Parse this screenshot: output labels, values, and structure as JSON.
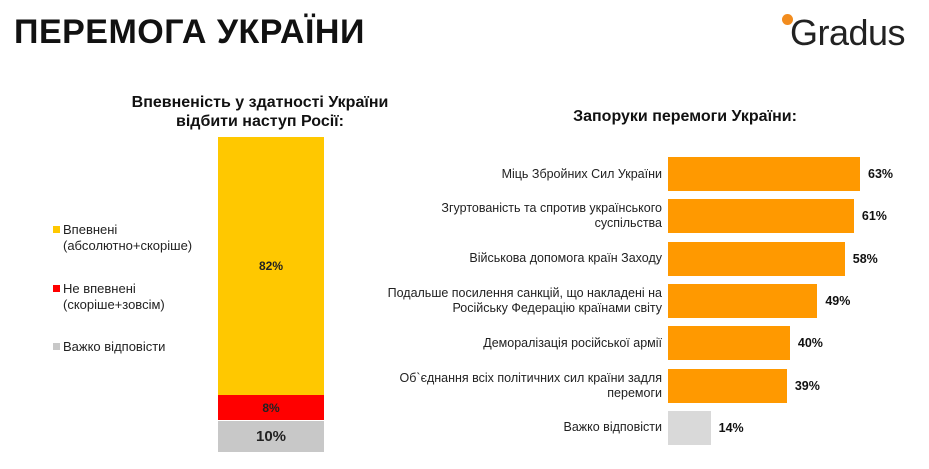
{
  "header": {
    "title": "ПЕРЕМОГА УКРАЇНИ",
    "brand": "Gradus"
  },
  "colors": {
    "confident": "#ffc800",
    "not_confident": "#ff0000",
    "hard_to_say": "#c8c8c8",
    "bars": "#ff9900",
    "bar_hard": "#d9d9d9",
    "brand_dot": "#f28c1e"
  },
  "chart_data": [
    {
      "type": "bar",
      "stacked": true,
      "title_lines": [
        "Впевненість у здатності України",
        "відбити наступ Росії:"
      ],
      "legend_position": "left",
      "series": [
        {
          "name": "Впевнені (абсолютно+скоріше)",
          "legend_lines": [
            "Впевнені",
            "(абсолютно+скоріше)"
          ],
          "value": 82,
          "label": "82%"
        },
        {
          "name": "Не впевнені (скоріше+зовсім)",
          "legend_lines": [
            "Не впевнені",
            "(скоріше+зовсім)"
          ],
          "value": 8,
          "label": "8%"
        },
        {
          "name": "Важко відповісти",
          "legend_lines": [
            "Важко відповісти"
          ],
          "value": 10,
          "label": "10%"
        }
      ]
    },
    {
      "type": "bar",
      "orientation": "horizontal",
      "title": "Запоруки перемоги України:",
      "xlim": [
        0,
        63
      ],
      "items": [
        {
          "lines": [
            "Міць Збройних Сил України"
          ],
          "value": 63,
          "label": "63%"
        },
        {
          "lines": [
            "Згуртованість та спротив українського",
            "суспільства"
          ],
          "value": 61,
          "label": "61%"
        },
        {
          "lines": [
            "Військова допомога країн Заходу"
          ],
          "value": 58,
          "label": "58%"
        },
        {
          "lines": [
            "Подальше посилення санкцій, що накладені на",
            "Російську Федерацію країнами світу"
          ],
          "value": 49,
          "label": "49%"
        },
        {
          "lines": [
            "Деморалізація російської армії"
          ],
          "value": 40,
          "label": "40%"
        },
        {
          "lines": [
            "Об`єднання всіх політичних сил країни задля",
            "перемоги"
          ],
          "value": 39,
          "label": "39%"
        },
        {
          "lines": [
            "Важко відповісти"
          ],
          "value": 14,
          "label": "14%",
          "muted": true
        }
      ]
    }
  ]
}
